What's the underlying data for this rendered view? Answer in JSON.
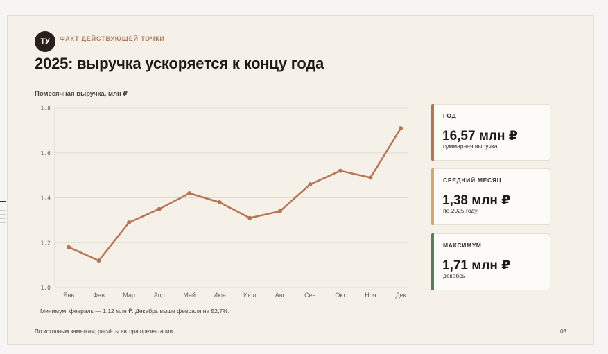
{
  "header": {
    "badge": "ТУ",
    "kicker": "ФАКТ ДЕЙСТВУЮЩЕЙ ТОЧКИ",
    "title": "2025: выручка ускоряется к концу года"
  },
  "chart_data": {
    "type": "line",
    "title": "Помесячная выручка, млн ₽",
    "categories": [
      "Янв",
      "Фев",
      "Мар",
      "Апр",
      "Май",
      "Июн",
      "Июл",
      "Авг",
      "Сен",
      "Окт",
      "Ноя",
      "Дек"
    ],
    "series": [
      {
        "values": [
          1.18,
          1.12,
          1.29,
          1.35,
          1.42,
          1.38,
          1.31,
          1.34,
          1.46,
          1.52,
          1.49,
          1.71
        ]
      }
    ],
    "ylim": [
      1.0,
      1.8
    ],
    "yticks": [
      "1.8",
      "1.6",
      "1.4",
      "1.2",
      "1.0"
    ],
    "grid": true,
    "color": "#b87352"
  },
  "note": "Минимум: февраль — 1,12 млн ₽. Декабрь выше февраля на 52,7%.",
  "cards": [
    {
      "label": "ГОД",
      "value": "16,57 млн ₽",
      "caption": "суммарная выручка",
      "color": "#b87352"
    },
    {
      "label": "СРЕДНИЙ МЕСЯЦ",
      "value": "1,38 млн ₽",
      "caption": "по 2025 году",
      "color": "#d2a96a"
    },
    {
      "label": "МАКСИМУМ",
      "value": "1,71 млн ₽",
      "caption": "декабрь",
      "color": "#5e7a5b"
    }
  ],
  "footer": {
    "source": "По исходным заметкам; расчёты автора презентации",
    "page": "03"
  }
}
